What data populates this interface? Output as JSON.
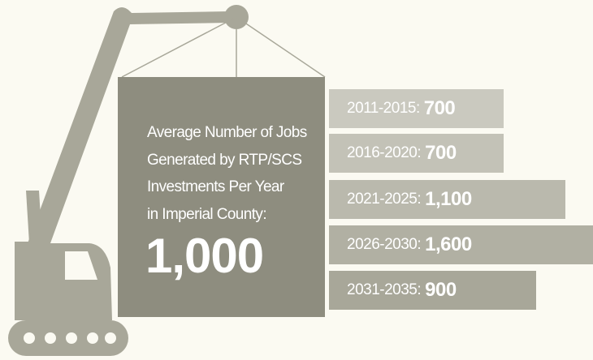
{
  "headline": {
    "lines": [
      "Average Number of Jobs",
      "Generated by RTP/SCS",
      "Investments Per Year",
      "in Imperial County:"
    ],
    "value": "1,000"
  },
  "periods": [
    {
      "label": "2011-2015:",
      "value": "700"
    },
    {
      "label": "2016-2020:",
      "value": "700"
    },
    {
      "label": "2021-2025:",
      "value": "1,100"
    },
    {
      "label": "2026-2030:",
      "value": "1,600"
    },
    {
      "label": "2031-2035:",
      "value": "900"
    }
  ]
}
